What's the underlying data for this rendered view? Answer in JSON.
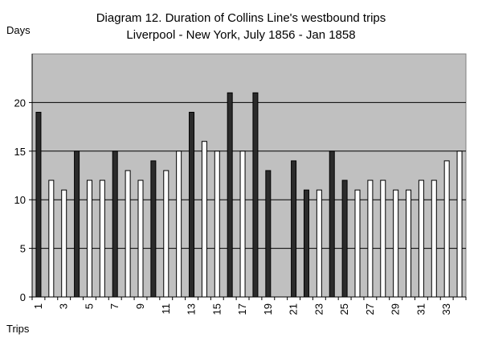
{
  "chart_data": {
    "type": "bar",
    "title": "Diagram 12. Duration of Collins Line's westbound trips",
    "subtitle": "Liverpool - New York, July 1856 - Jan 1858",
    "xlabel": "Trips",
    "ylabel": "Days",
    "ylim": [
      0,
      25
    ],
    "yticks": [
      0,
      5,
      10,
      15,
      20
    ],
    "grid": true,
    "plot_background": "#c0c0c0",
    "bar_colors": {
      "dark": "#2b2b2b",
      "light": "#ffffff"
    },
    "categories": [
      1,
      2,
      3,
      4,
      5,
      6,
      7,
      8,
      9,
      10,
      11,
      12,
      13,
      14,
      15,
      16,
      17,
      18,
      19,
      20,
      21,
      22,
      23,
      24,
      25,
      26,
      27,
      28,
      29,
      30,
      31,
      32,
      33,
      34
    ],
    "x_tick_labels": [
      1,
      3,
      5,
      7,
      9,
      11,
      13,
      15,
      17,
      19,
      21,
      23,
      25,
      27,
      29,
      31,
      33
    ],
    "values": [
      19,
      12,
      11,
      15,
      12,
      12,
      15,
      13,
      12,
      14,
      13,
      15,
      19,
      16,
      15,
      21,
      15,
      21,
      13,
      null,
      14,
      11,
      11,
      15,
      12,
      11,
      12,
      12,
      11,
      11,
      12,
      12,
      14,
      15
    ],
    "bar_shade": [
      "dark",
      "light",
      "light",
      "dark",
      "light",
      "light",
      "dark",
      "light",
      "light",
      "dark",
      "light",
      "light",
      "dark",
      "light",
      "light",
      "dark",
      "light",
      "dark",
      "dark",
      null,
      "dark",
      "dark",
      "light",
      "dark",
      "dark",
      "light",
      "light",
      "light",
      "light",
      "light",
      "light",
      "light",
      "light",
      "light"
    ]
  }
}
